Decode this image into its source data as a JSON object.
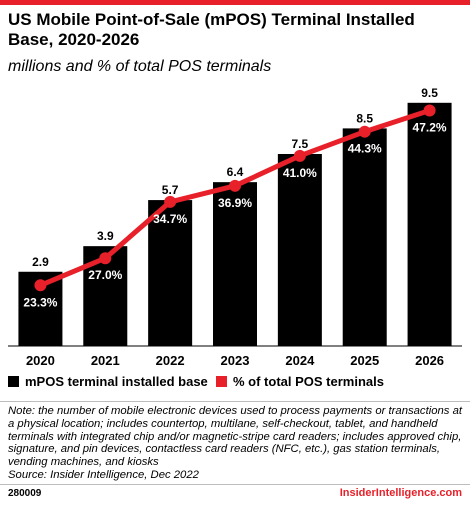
{
  "title": "US Mobile Point-of-Sale (mPOS) Terminal Installed Base, 2020-2026",
  "subtitle": "millions and % of total POS terminals",
  "colors": {
    "bar": "#000000",
    "line": "#e8202a",
    "accent": "#e8202a",
    "label_light": "#ffffff"
  },
  "legend": {
    "bar_label": "mPOS terminal installed base",
    "line_label": "% of total POS terminals"
  },
  "note": "Note: the number of mobile electronic devices used to process payments or transactions at a physical location; includes countertop, multilane, self-checkout, tablet, and handheld terminals with integrated chip and/or magnetic-stripe card readers; includes approved chip, signature, and pin devices, contactless card readers (NFC, etc.), gas station terminals, vending machines, and kiosks",
  "source": "Source: Insider Intelligence, Dec 2022",
  "footer": {
    "id": "280009",
    "brand": "InsiderIntelligence.com"
  },
  "chart_data": {
    "type": "bar",
    "categories": [
      "2020",
      "2021",
      "2022",
      "2023",
      "2024",
      "2025",
      "2026"
    ],
    "series": [
      {
        "name": "mPOS terminal installed base",
        "type": "bar",
        "values": [
          2.9,
          3.9,
          5.7,
          6.4,
          7.5,
          8.5,
          9.5
        ],
        "labels": [
          "2.9",
          "3.9",
          "5.7",
          "6.4",
          "7.5",
          "8.5",
          "9.5"
        ]
      },
      {
        "name": "% of total POS terminals",
        "type": "line",
        "values": [
          23.3,
          27.0,
          34.7,
          36.9,
          41.0,
          44.3,
          47.2
        ],
        "labels": [
          "23.3%",
          "27.0%",
          "34.7%",
          "36.9%",
          "41.0%",
          "44.3%",
          "47.2%"
        ]
      }
    ],
    "ylim_bar": [
      0,
      10
    ],
    "ylim_line": [
      15,
      50
    ]
  }
}
